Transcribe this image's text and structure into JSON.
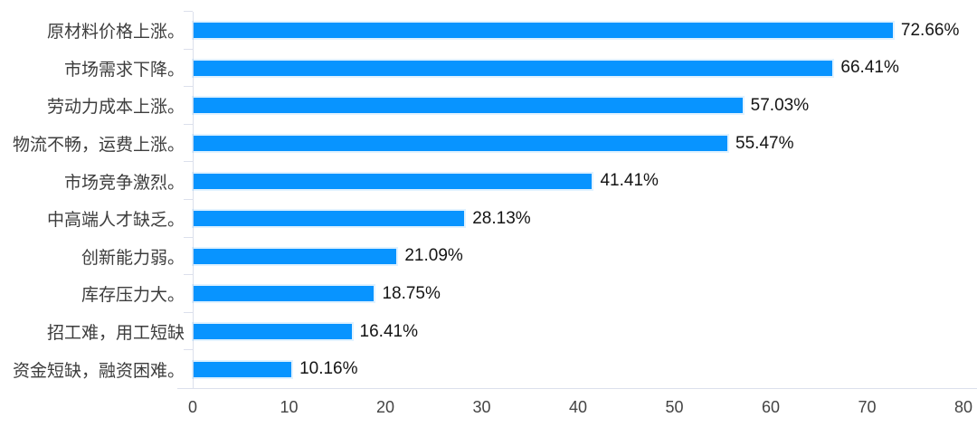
{
  "chart_data": {
    "type": "bar",
    "orientation": "horizontal",
    "title": "",
    "xlabel": "",
    "ylabel": "",
    "xlim": [
      0,
      80
    ],
    "x_tick_step": 10,
    "x_ticks": [
      "0",
      "10",
      "20",
      "30",
      "40",
      "50",
      "60",
      "70",
      "80"
    ],
    "grid": "off",
    "legend": "none",
    "bar_color": "#0894FF",
    "axis_line_color": "#DCE0EC",
    "categories": [
      "原材料价格上涨。",
      "市场需求下降。",
      "劳动力成本上涨。",
      "物流不畅，运费上涨。",
      "市场竞争激烈。",
      "中高端人才缺乏。",
      "创新能力弱。",
      "库存压力大。",
      "招工难，用工短缺",
      "资金短缺，融资困难。"
    ],
    "values": [
      72.66,
      66.41,
      57.03,
      55.47,
      41.41,
      28.13,
      21.09,
      18.75,
      16.41,
      10.16
    ],
    "value_labels": [
      "72.66%",
      "66.41%",
      "57.03%",
      "55.47%",
      "41.41%",
      "28.13%",
      "21.09%",
      "18.75%",
      "16.41%",
      "10.16%"
    ]
  }
}
